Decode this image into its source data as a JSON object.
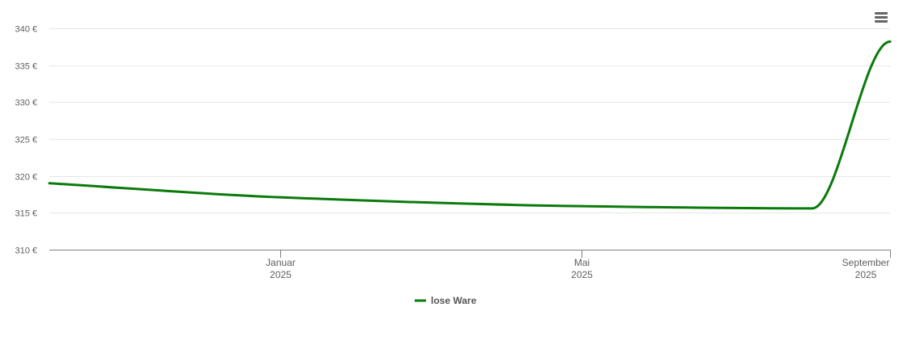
{
  "chart_data": {
    "type": "line",
    "title": "",
    "xlabel": "",
    "ylabel": "",
    "ylim": [
      310,
      340
    ],
    "y_ticks": [
      310,
      315,
      320,
      325,
      330,
      335,
      340
    ],
    "y_tick_labels": [
      "310 €",
      "315 €",
      "320 €",
      "325 €",
      "330 €",
      "335 €",
      "340 €"
    ],
    "xlim": [
      "2024-10-01",
      "2025-09-01"
    ],
    "x_ticks": [
      {
        "date": "2025-01-01",
        "month": "Januar",
        "year": "2025"
      },
      {
        "date": "2025-05-01",
        "month": "Mai",
        "year": "2025"
      },
      {
        "date": "2025-09-01",
        "month": "September",
        "year": "2025"
      }
    ],
    "grid": true,
    "legend": "bottom-center",
    "series": [
      {
        "name": "lose Ware",
        "color": "#0a7a0a",
        "x": [
          "2024-10-01",
          "2025-01-01",
          "2025-05-01",
          "2025-08-01",
          "2025-09-01"
        ],
        "y": [
          319.0,
          317.1,
          315.9,
          315.6,
          338.2
        ]
      }
    ]
  },
  "menu": {
    "icon": "hamburger-menu-icon"
  }
}
